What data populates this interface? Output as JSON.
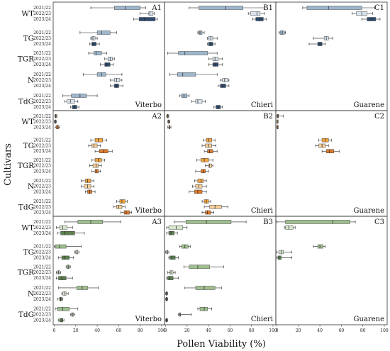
{
  "axis": {
    "xlabel": "Pollen Viability (%)",
    "ylabel": "Cultivars",
    "xticks": [
      "0",
      "20",
      "40",
      "60",
      "80",
      "100"
    ]
  },
  "cultivars": [
    "WT",
    "TG",
    "TGR",
    "N",
    "TdG"
  ],
  "years": [
    "2021/22",
    "2022/23",
    "2023/24"
  ],
  "colors": {
    "blue_light": "#d9e4ee",
    "blue_mid": "#9db6cc",
    "blue_dark": "#2c4a6d",
    "orange": "#f4a640",
    "orange_light": "#f9d19a",
    "orange_dark": "#e07b2a",
    "green_light": "#d6e6cc",
    "green_mid": "#9fbf8e",
    "green_dark": "#5c7f4f"
  },
  "chart_data": [
    {
      "type": "box",
      "panel": "A1",
      "site": "Viterbo",
      "xlim": [
        0,
        100
      ],
      "boxes": [
        [
          [
            34,
            56,
            66,
            80,
            85
          ],
          [
            80,
            88,
            89,
            92,
            93
          ],
          [
            74,
            79,
            84,
            94,
            96
          ]
        ],
        [
          [
            24,
            40,
            44,
            52,
            58
          ],
          [
            34,
            35,
            36,
            38,
            40
          ],
          [
            33,
            35,
            36,
            39,
            42
          ]
        ],
        [
          [
            32,
            37,
            39,
            44,
            49
          ],
          [
            47,
            50,
            52,
            54,
            56
          ],
          [
            43,
            47,
            49,
            52,
            55
          ]
        ],
        [
          [
            27,
            40,
            44,
            48,
            63
          ],
          [
            52,
            56,
            58,
            61,
            63
          ],
          [
            52,
            56,
            58,
            60,
            64
          ]
        ],
        [
          [
            8,
            16,
            24,
            30,
            40
          ],
          [
            10,
            12,
            15,
            19,
            22
          ],
          [
            15,
            17,
            19,
            21,
            23
          ]
        ]
      ]
    },
    {
      "type": "box",
      "panel": "B1",
      "site": "Chieri",
      "xlim": [
        0,
        100
      ],
      "boxes": [
        [
          [
            22,
            31,
            56,
            72,
            92
          ],
          [
            77,
            79,
            85,
            88,
            92
          ],
          [
            81,
            84,
            88,
            91,
            94
          ]
        ],
        [
          [
            30,
            31,
            32,
            34,
            36
          ],
          [
            39,
            40,
            42,
            44,
            48
          ],
          [
            39,
            40,
            42,
            44,
            46
          ]
        ],
        [
          [
            2,
            12,
            18,
            39,
            48
          ],
          [
            40,
            44,
            46,
            49,
            53
          ],
          [
            40,
            44,
            46,
            49,
            53
          ]
        ],
        [
          [
            4,
            11,
            16,
            28,
            48
          ],
          [
            51,
            53,
            55,
            58,
            59
          ],
          [
            49,
            51,
            53,
            56,
            59
          ]
        ],
        [
          [
            13,
            15,
            17,
            20,
            22
          ],
          [
            24,
            28,
            30,
            34,
            37
          ],
          [
            45,
            47,
            49,
            51,
            53
          ]
        ]
      ]
    },
    {
      "type": "box",
      "panel": "C1",
      "site": "Guarene",
      "xlim": [
        0,
        100
      ],
      "boxes": [
        [
          [
            24,
            28,
            48,
            79,
            91
          ],
          [
            70,
            74,
            79,
            84,
            89
          ],
          [
            79,
            84,
            88,
            92,
            96
          ]
        ],
        [
          [
            2,
            3,
            5,
            7,
            8
          ],
          [
            34,
            44,
            46,
            48,
            52
          ],
          [
            30,
            38,
            40,
            42,
            45
          ]
        ],
        null,
        null,
        null
      ]
    },
    {
      "type": "box",
      "panel": "A2",
      "site": "Viterbo",
      "xlim": [
        0,
        100
      ],
      "boxes": [
        [
          [
            0.5,
            1,
            1.5,
            2,
            2.5
          ],
          [
            0,
            0.5,
            1,
            1.5,
            2
          ],
          [
            1,
            2,
            3,
            4,
            5
          ]
        ],
        [
          [
            34,
            38,
            41,
            45,
            49
          ],
          [
            32,
            35,
            37,
            40,
            43
          ],
          [
            38,
            42,
            46,
            50,
            54
          ]
        ],
        [
          [
            35,
            38,
            41,
            44,
            47
          ],
          [
            33,
            36,
            39,
            41,
            44
          ],
          [
            35,
            38,
            39,
            41,
            43
          ]
        ],
        [
          [
            25,
            29,
            31,
            34,
            37
          ],
          [
            25,
            28,
            31,
            34,
            37
          ],
          [
            29,
            31,
            33,
            35,
            38
          ]
        ],
        [
          [
            58,
            61,
            63,
            66,
            68
          ],
          [
            55,
            58,
            60,
            63,
            66
          ],
          [
            62,
            65,
            67,
            70,
            72
          ]
        ]
      ]
    },
    {
      "type": "box",
      "panel": "B2",
      "site": "Chieri",
      "xlim": [
        0,
        100
      ],
      "boxes": [
        [
          [
            1,
            1.5,
            2,
            2.5,
            3
          ],
          [
            2,
            2.5,
            3,
            3.5,
            4
          ],
          [
            2,
            3,
            3.5,
            4,
            5
          ]
        ],
        [
          [
            35,
            38,
            40,
            43,
            46
          ],
          [
            34,
            37,
            40,
            43,
            47
          ],
          [
            36,
            39,
            41,
            44,
            48
          ]
        ],
        [
          [
            29,
            33,
            36,
            40,
            44
          ],
          [
            37,
            40,
            41,
            43,
            44
          ],
          [
            28,
            33,
            35,
            37,
            40
          ]
        ],
        [
          [
            27,
            30,
            33,
            35,
            38
          ],
          [
            25,
            28,
            31,
            34,
            38
          ],
          [
            22,
            27,
            30,
            34,
            38
          ]
        ],
        [
          [
            34,
            36,
            38,
            40,
            42
          ],
          [
            36,
            41,
            46,
            52,
            58
          ],
          [
            34,
            37,
            39,
            42,
            45
          ]
        ]
      ]
    },
    {
      "type": "box",
      "panel": "C2",
      "site": "Guarene",
      "xlim": [
        0,
        100
      ],
      "boxes": [
        [
          [
            0,
            0.5,
            1,
            1.5,
            6
          ],
          [
            0,
            0.3,
            0.5,
            0.8,
            1
          ],
          [
            0,
            0.3,
            0.5,
            0.8,
            1
          ]
        ],
        [
          [
            39,
            42,
            45,
            48,
            51
          ],
          [
            36,
            39,
            42,
            45,
            48
          ],
          [
            42,
            46,
            49,
            53,
            58
          ]
        ],
        null,
        null,
        null
      ]
    },
    {
      "type": "box",
      "panel": "A3",
      "site": "Viterbo",
      "xlim": [
        0,
        100
      ],
      "boxes": [
        [
          [
            10,
            22,
            34,
            45,
            62
          ],
          [
            2,
            5,
            8,
            12,
            17
          ],
          [
            3,
            6,
            10,
            19,
            28
          ]
        ],
        [
          [
            0,
            1,
            5,
            11,
            25
          ],
          [
            19,
            20,
            21,
            22,
            23
          ],
          [
            4,
            7,
            10,
            14,
            18
          ]
        ],
        [
          [
            11,
            12,
            13,
            14,
            15
          ],
          [
            2,
            3,
            4,
            5,
            6
          ],
          [
            2,
            4,
            7,
            11,
            17
          ]
        ],
        [
          [
            4,
            21,
            26,
            31,
            41
          ],
          [
            7,
            8,
            10,
            11,
            13
          ],
          [
            3,
            5,
            6,
            7,
            8
          ]
        ],
        [
          [
            1,
            3,
            8,
            14,
            22
          ],
          [
            15,
            16,
            17,
            18,
            19
          ],
          [
            4,
            5,
            7,
            8,
            9
          ]
        ]
      ]
    },
    {
      "type": "box",
      "panel": "B3",
      "site": "Chieri",
      "xlim": [
        0,
        100
      ],
      "boxes": [
        [
          [
            8,
            19,
            38,
            61,
            75
          ],
          [
            1,
            3,
            10,
            16,
            20
          ],
          [
            1,
            3,
            5,
            8,
            11
          ]
        ],
        [
          [
            13,
            15,
            18,
            21,
            23
          ],
          [
            0,
            1,
            1.5,
            2,
            3
          ],
          [
            3,
            4,
            6,
            9,
            12
          ]
        ],
        [
          [
            17,
            22,
            30,
            41,
            54
          ],
          [
            2,
            4,
            5,
            7,
            9
          ],
          [
            1,
            2,
            4,
            7,
            12
          ]
        ],
        [
          [
            18,
            28,
            36,
            46,
            52
          ],
          [
            0,
            0.5,
            1,
            1.5,
            2
          ],
          [
            0,
            0.5,
            1,
            1.5,
            2
          ]
        ],
        [
          [
            30,
            32,
            36,
            39,
            43
          ],
          [
            12,
            13,
            13.5,
            14,
            24
          ],
          [
            0,
            0.5,
            1,
            1.5,
            2
          ]
        ]
      ]
    },
    {
      "type": "box",
      "panel": "C3",
      "site": "Guarene",
      "xlim": [
        0,
        100
      ],
      "boxes": [
        [
          [
            0,
            8,
            52,
            68,
            73
          ],
          [
            7,
            8,
            11,
            15,
            17
          ],
          null
        ],
        [
          [
            34,
            38,
            40,
            43,
            45
          ],
          [
            0,
            2,
            4,
            6,
            14
          ],
          [
            0,
            1,
            2,
            4,
            14
          ]
        ],
        null,
        null,
        null
      ]
    }
  ]
}
